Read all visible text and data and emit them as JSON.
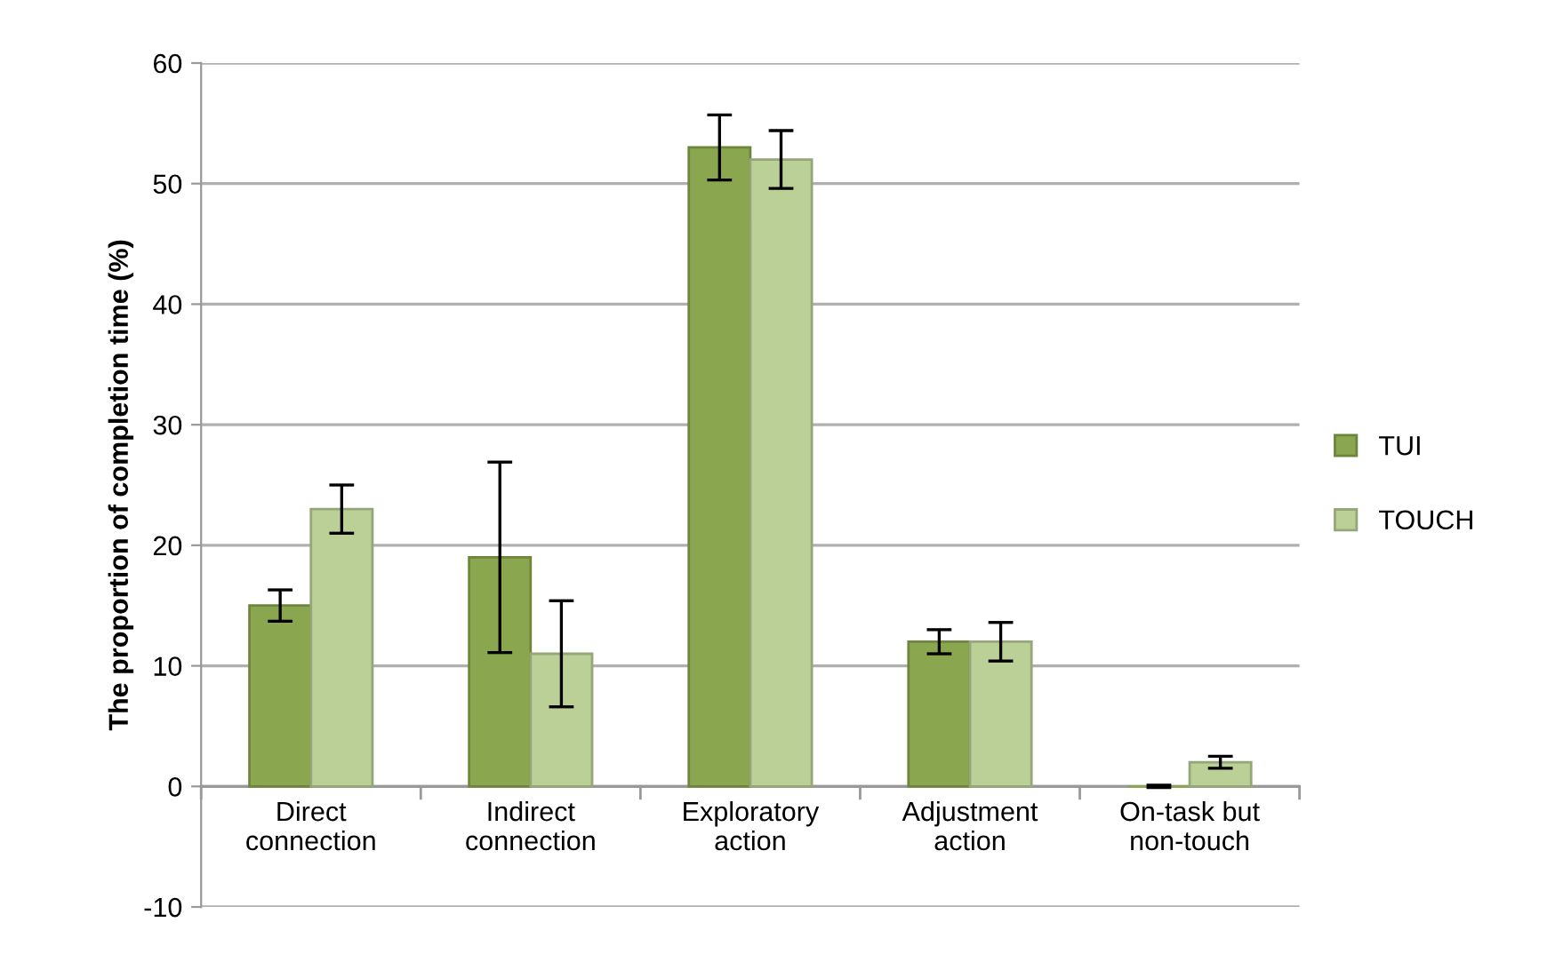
{
  "chart_data": {
    "type": "bar",
    "ylabel": "The proportion of completion time (%)",
    "categories": [
      "Direct\nconnection",
      "Indirect\nconnection",
      "Exploratory\naction",
      "Adjustment\naction",
      "On-task but\nnon-touch"
    ],
    "series": [
      {
        "name": "TUI",
        "color": "#8aa64e",
        "values": [
          15,
          19,
          53,
          12,
          0
        ],
        "errors": [
          1.3,
          7.9,
          2.7,
          1,
          0.1
        ]
      },
      {
        "name": "TOUCH",
        "color": "#bad096",
        "values": [
          23,
          11,
          52,
          12,
          2
        ],
        "errors": [
          2,
          4.4,
          2.4,
          1.6,
          0.5
        ]
      }
    ],
    "ylim": [
      -10,
      60
    ],
    "yticks": [
      -10,
      0,
      10,
      20,
      30,
      40,
      50,
      60
    ],
    "grid": "y",
    "legend": "right"
  }
}
